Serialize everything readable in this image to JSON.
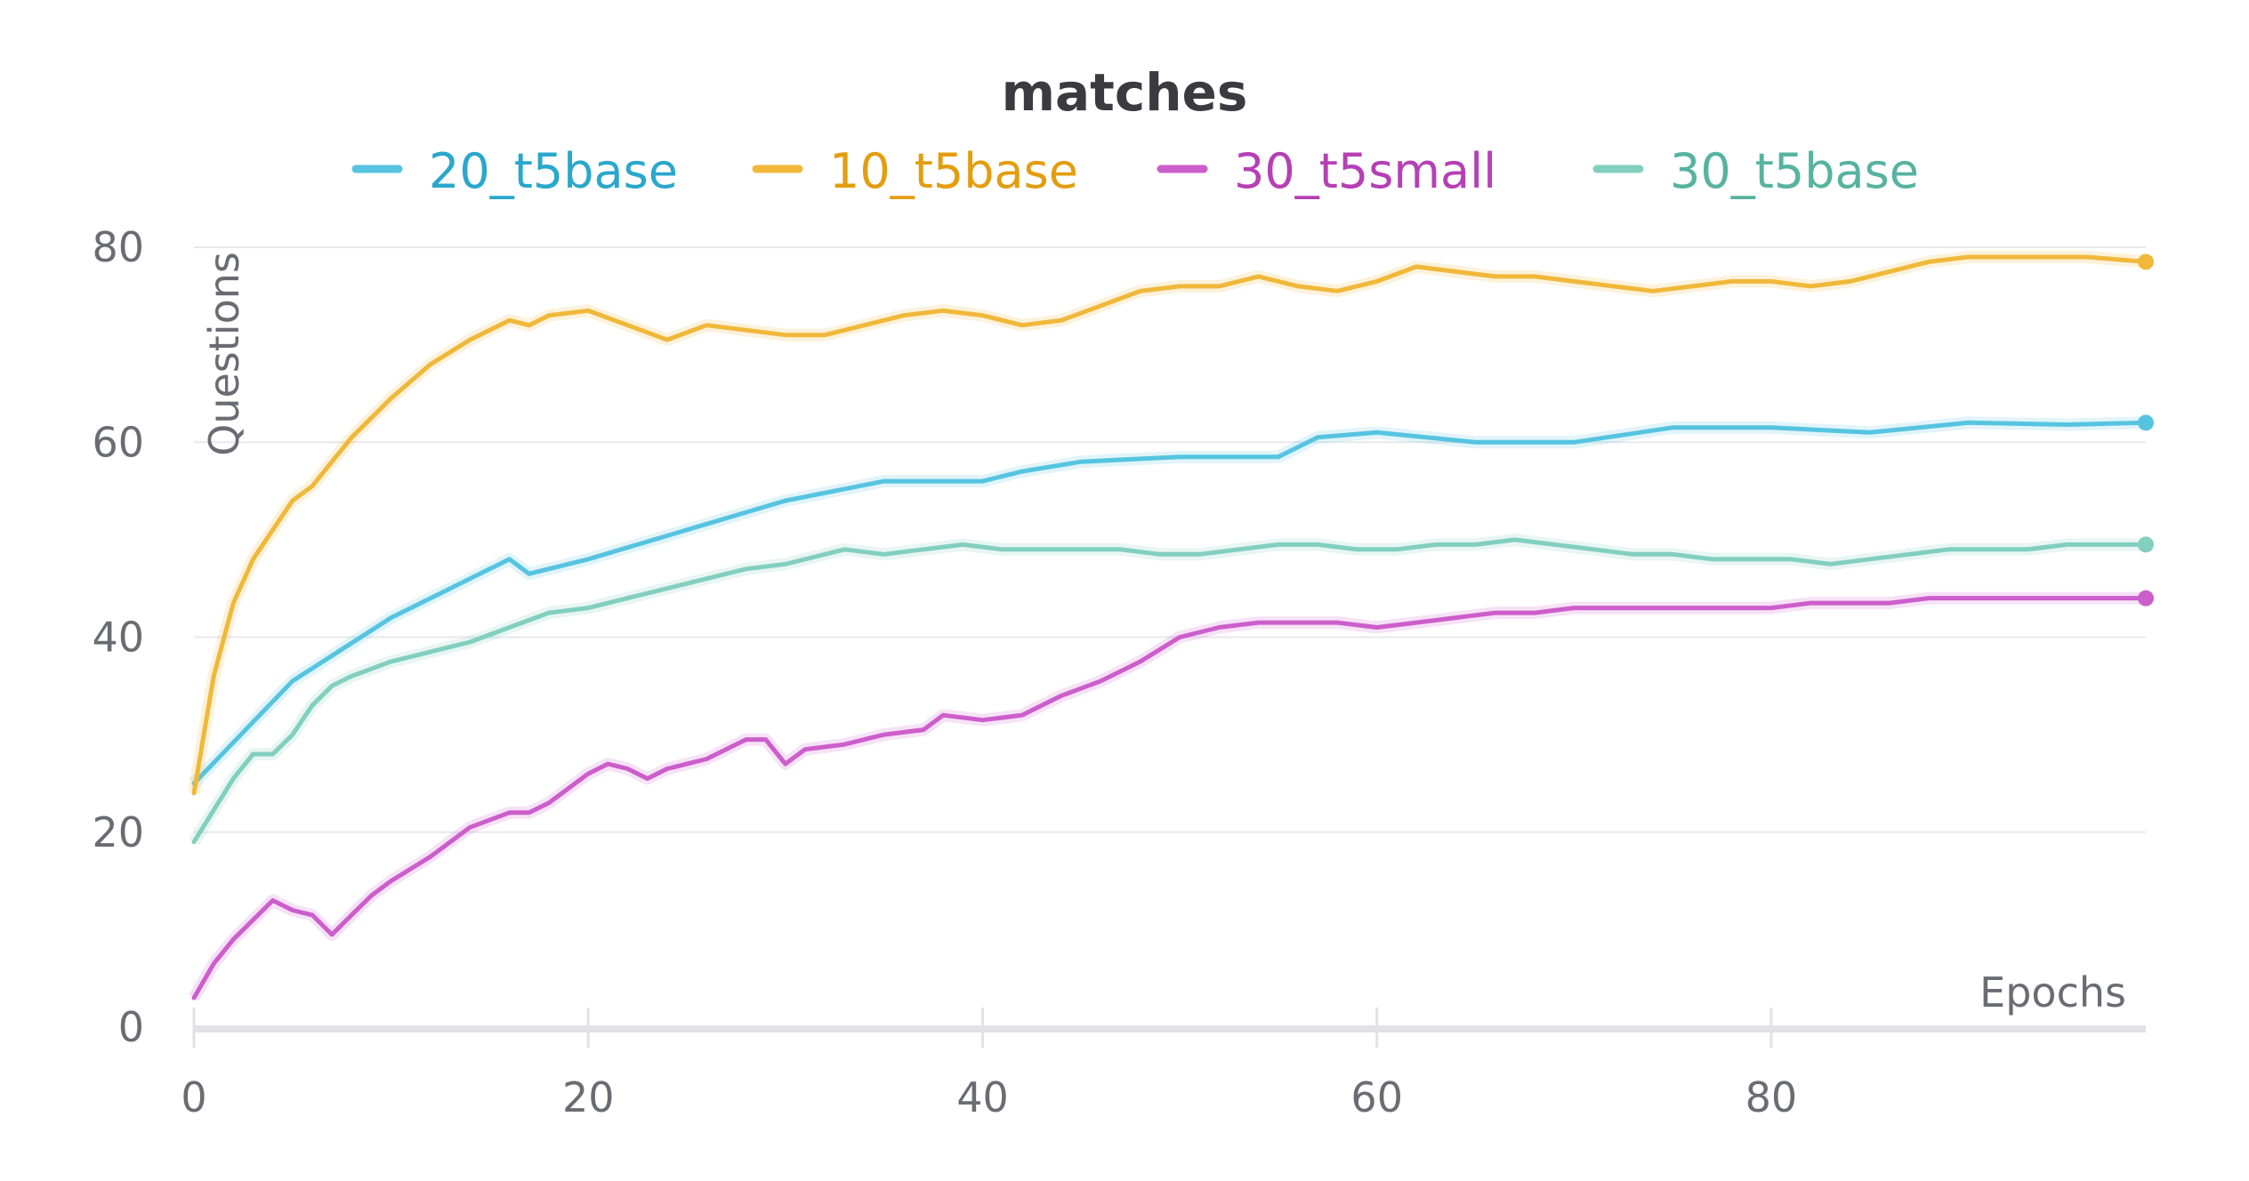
{
  "chart_data": {
    "type": "line",
    "title": "matches",
    "xlabel": "Epochs",
    "ylabel": "Questions",
    "xlim": [
      0,
      99
    ],
    "ylim": [
      0,
      80
    ],
    "x_ticks": [
      0,
      20,
      40,
      60,
      80
    ],
    "y_ticks": [
      0,
      20,
      40,
      60,
      80
    ],
    "grid": "horizontal",
    "legend_position": "top",
    "series": [
      {
        "name": "20_t5base",
        "color": "#56c4e0",
        "label_color": "#2aa7cc",
        "x": [
          0,
          5,
          10,
          15,
          16,
          17,
          20,
          25,
          30,
          35,
          40,
          42,
          45,
          50,
          55,
          57,
          60,
          65,
          70,
          75,
          80,
          85,
          90,
          95,
          99
        ],
        "values": [
          25,
          35.5,
          42,
          47,
          48,
          46.5,
          48,
          51,
          54,
          56,
          56,
          57,
          58,
          58.5,
          58.5,
          60.5,
          61,
          60,
          60,
          61.5,
          61.5,
          61,
          62,
          61.8,
          62
        ]
      },
      {
        "name": "10_t5base",
        "color": "#f0b83a",
        "label_color": "#e39d0e",
        "x": [
          0,
          1,
          2,
          3,
          4,
          5,
          6,
          7,
          8,
          9,
          10,
          12,
          14,
          16,
          17,
          18,
          20,
          22,
          24,
          26,
          28,
          30,
          32,
          34,
          36,
          38,
          40,
          42,
          44,
          46,
          48,
          50,
          52,
          54,
          56,
          58,
          60,
          62,
          64,
          66,
          68,
          70,
          72,
          74,
          76,
          78,
          80,
          82,
          84,
          86,
          88,
          90,
          92,
          94,
          96,
          99
        ],
        "values": [
          24,
          36,
          43.5,
          48,
          51,
          54,
          55.5,
          58,
          60.5,
          62.5,
          64.5,
          68,
          70.5,
          72.5,
          72,
          73,
          73.5,
          72,
          70.5,
          72,
          71.5,
          71,
          71,
          72,
          73,
          73.5,
          73,
          72,
          72.5,
          74,
          75.5,
          76,
          76,
          77,
          76,
          75.5,
          76.5,
          78,
          77.5,
          77,
          77,
          76.5,
          76,
          75.5,
          76,
          76.5,
          76.5,
          76,
          76.5,
          77.5,
          78.5,
          79,
          79,
          79,
          79,
          78.5
        ]
      },
      {
        "name": "30_t5small",
        "color": "#cc5ecc",
        "label_color": "#b540b5",
        "x": [
          0,
          1,
          2,
          3,
          4,
          5,
          6,
          7,
          8,
          9,
          10,
          12,
          14,
          16,
          17,
          18,
          20,
          21,
          22,
          23,
          24,
          26,
          28,
          29,
          30,
          31,
          33,
          35,
          37,
          38,
          40,
          42,
          44,
          46,
          48,
          50,
          52,
          54,
          56,
          58,
          60,
          62,
          64,
          66,
          68,
          70,
          72,
          74,
          76,
          78,
          80,
          82,
          84,
          86,
          88,
          90,
          92,
          94,
          96,
          99
        ],
        "values": [
          3,
          6.5,
          9,
          11,
          13,
          12,
          11.5,
          9.5,
          11.5,
          13.5,
          15,
          17.5,
          20.5,
          22,
          22,
          23,
          26,
          27,
          26.5,
          25.5,
          26.5,
          27.5,
          29.5,
          29.5,
          27,
          28.5,
          29,
          30,
          30.5,
          32,
          31.5,
          32,
          34,
          35.5,
          37.5,
          40,
          41,
          41.5,
          41.5,
          41.5,
          41,
          41.5,
          42,
          42.5,
          42.5,
          43,
          43,
          43,
          43,
          43,
          43,
          43.5,
          43.5,
          43.5,
          44,
          44,
          44,
          44,
          44,
          44
        ]
      },
      {
        "name": "30_t5base",
        "color": "#82cfbf",
        "label_color": "#56b3a0",
        "x": [
          0,
          2,
          3,
          4,
          5,
          6,
          7,
          8,
          10,
          12,
          14,
          16,
          18,
          20,
          22,
          24,
          26,
          28,
          30,
          32,
          33,
          35,
          37,
          39,
          41,
          43,
          45,
          47,
          49,
          51,
          53,
          55,
          57,
          59,
          61,
          63,
          65,
          67,
          69,
          71,
          73,
          75,
          77,
          79,
          81,
          83,
          85,
          87,
          89,
          91,
          93,
          95,
          97,
          99
        ],
        "values": [
          19,
          25.5,
          28,
          28,
          30,
          33,
          35,
          36,
          37.5,
          38.5,
          39.5,
          41,
          42.5,
          43,
          44,
          45,
          46,
          47,
          47.5,
          48.5,
          49,
          48.5,
          49,
          49.5,
          49,
          49,
          49,
          49,
          48.5,
          48.5,
          49,
          49.5,
          49.5,
          49,
          49,
          49.5,
          49.5,
          50,
          49.5,
          49,
          48.5,
          48.5,
          48,
          48,
          48,
          47.5,
          48,
          48.5,
          49,
          49,
          49,
          49.5,
          49.5,
          49.5
        ]
      }
    ]
  }
}
